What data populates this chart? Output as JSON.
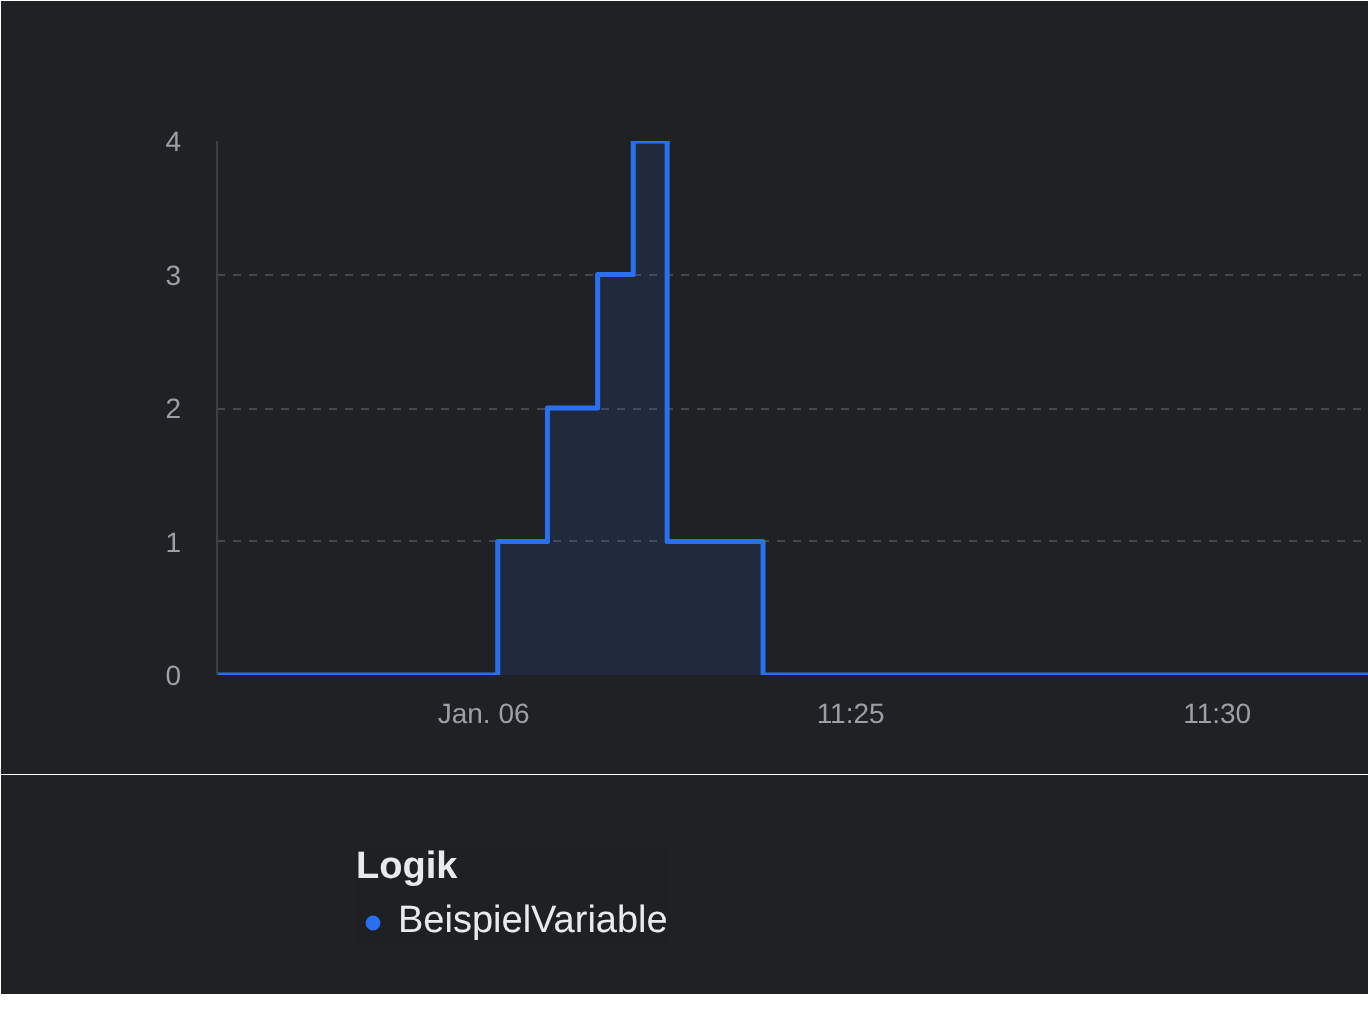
{
  "chart_data": {
    "type": "step",
    "legend_title": "Logik",
    "legend": "bottom",
    "grid": "y",
    "marker": "none",
    "xlim": [
      11.2727,
      11.5345
    ],
    "xticks": [
      {
        "value": 11.3333,
        "label": "Jan. 06"
      },
      {
        "value": 11.4167,
        "label": "11:25"
      },
      {
        "value": 11.5,
        "label": "11:30"
      }
    ],
    "ylim": [
      0,
      4
    ],
    "yticks": [
      0,
      1,
      2,
      3,
      4
    ],
    "x": [
      11.2727,
      11.3365,
      11.3478,
      11.3592,
      11.3673,
      11.375,
      11.3968,
      11.5345
    ],
    "series": [
      {
        "name": "BeispielVariable",
        "color": "#2a6ff0",
        "values": [
          0,
          1,
          2,
          3,
          4,
          1,
          0,
          0
        ]
      }
    ]
  }
}
